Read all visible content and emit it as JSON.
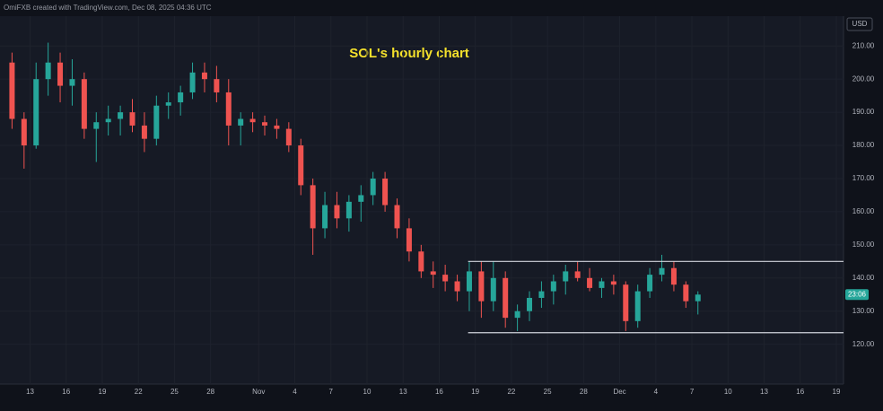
{
  "chart_data": {
    "type": "candlestick",
    "header": "OmiFXB created with TradingView.com, Dec 08, 2025 04:36 UTC",
    "title": "SOL's hourly chart",
    "currency": "USD",
    "countdown": "23:06",
    "x": [
      11.5,
      12.5,
      13.5,
      14.5,
      15.5,
      16.5,
      17.5,
      18.5,
      19.5,
      20.5,
      21.5,
      22.5,
      23.5,
      24.5,
      25.5,
      26.5,
      27.5,
      28.5,
      29.5,
      30.5,
      31.5,
      32.5,
      33.5,
      34.5,
      35.5,
      36.5,
      37.5,
      38.5,
      39.5,
      40.5,
      41.5,
      42.5,
      43.5,
      44.5,
      45.5,
      46.5,
      47.5,
      48.5,
      49.5,
      50.5,
      51.5,
      52.5,
      53.5,
      54.5,
      55.5,
      56.5,
      57.5,
      58.5,
      59.5,
      60.5,
      61.5,
      62.5,
      63.5,
      64.5,
      65.5,
      66.5,
      67.5,
      68.5
    ],
    "open": [
      205,
      188,
      180,
      200,
      205,
      198,
      200,
      185,
      187,
      188,
      190,
      186,
      182,
      192,
      193,
      196,
      202,
      200,
      196,
      186,
      188,
      187,
      186,
      185,
      180,
      168,
      155,
      162,
      158,
      163,
      165,
      170,
      162,
      155,
      148,
      142,
      141,
      139,
      136,
      142,
      133,
      140,
      128,
      130,
      134,
      136,
      139,
      142,
      140,
      137,
      139,
      138,
      127,
      136,
      141,
      143,
      138,
      133
    ],
    "high": [
      208,
      190,
      205,
      211,
      208,
      206,
      202,
      190,
      192,
      192,
      194,
      190,
      195,
      196,
      198,
      205,
      205,
      204,
      200,
      190,
      190,
      189,
      188,
      187,
      182,
      170,
      166,
      166,
      165,
      168,
      172,
      172,
      164,
      158,
      150,
      145,
      144,
      141,
      145,
      145,
      145,
      142,
      132,
      136,
      139,
      141,
      144,
      145,
      143,
      140,
      141,
      139,
      138,
      143,
      147,
      145,
      139,
      136
    ],
    "low": [
      185,
      173,
      179,
      195,
      193,
      192,
      182,
      175,
      183,
      183,
      184,
      178,
      180,
      188,
      189,
      194,
      196,
      193,
      180,
      180,
      184,
      183,
      182,
      178,
      165,
      147,
      152,
      155,
      154,
      157,
      162,
      160,
      152,
      145,
      140,
      137,
      136,
      133,
      130,
      128,
      130,
      125,
      124,
      127,
      131,
      132,
      135,
      139,
      136,
      134,
      135,
      124,
      125,
      134,
      139,
      136,
      131,
      129
    ],
    "close": [
      188,
      180,
      200,
      205,
      198,
      200,
      185,
      187,
      188,
      190,
      186,
      182,
      192,
      193,
      196,
      202,
      200,
      196,
      186,
      188,
      187,
      186,
      185,
      180,
      168,
      155,
      162,
      158,
      163,
      165,
      170,
      162,
      155,
      148,
      142,
      141,
      139,
      136,
      142,
      133,
      140,
      128,
      130,
      134,
      136,
      139,
      142,
      140,
      137,
      139,
      138,
      127,
      136,
      141,
      143,
      138,
      133,
      135
    ],
    "up_color": "#26a69a",
    "down_color": "#ef5350",
    "levels": [
      145,
      123.5
    ],
    "levels_start": 49.4,
    "xlim": [
      10.5,
      80.6
    ],
    "ylim": [
      108,
      219
    ],
    "yticks": [
      {
        "value": 120,
        "label": "120.00"
      },
      {
        "value": 130,
        "label": "130.00"
      },
      {
        "value": 140,
        "label": "140.00"
      },
      {
        "value": 150,
        "label": "150.00"
      },
      {
        "value": 160,
        "label": "160.00"
      },
      {
        "value": 170,
        "label": "170.00"
      },
      {
        "value": 180,
        "label": "180.00"
      },
      {
        "value": 190,
        "label": "190.00"
      },
      {
        "value": 200,
        "label": "200.00"
      },
      {
        "value": 210,
        "label": "210.00"
      }
    ],
    "xticks": [
      13,
      16,
      19,
      22,
      25,
      28,
      {
        "value": 32,
        "label": "Nov"
      },
      {
        "value": 35,
        "label": "4"
      },
      {
        "value": 38,
        "label": "7"
      },
      {
        "value": 41,
        "label": "10"
      },
      {
        "value": 44,
        "label": "13"
      },
      {
        "value": 47,
        "label": "16"
      },
      {
        "value": 50,
        "label": "19"
      },
      {
        "value": 53,
        "label": "22"
      },
      {
        "value": 56,
        "label": "25"
      },
      {
        "value": 59,
        "label": "28"
      },
      {
        "value": 62,
        "label": "Dec"
      },
      {
        "value": 65,
        "label": "4"
      },
      {
        "value": 68,
        "label": "7"
      },
      {
        "value": 71,
        "label": "10"
      },
      {
        "value": 74,
        "label": "13"
      },
      {
        "value": 77,
        "label": "16"
      },
      {
        "value": 80,
        "label": "19"
      }
    ],
    "grid": true
  }
}
